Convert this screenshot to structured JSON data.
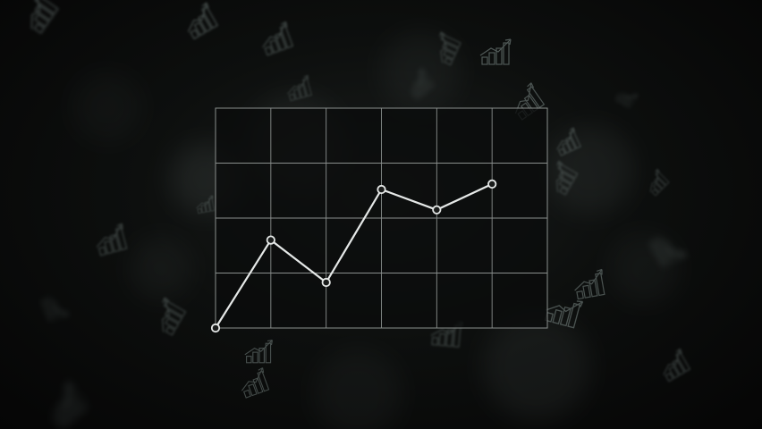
{
  "chart_data": {
    "type": "line",
    "title": "",
    "xlabel": "",
    "ylabel": "",
    "x": [
      0,
      1,
      2,
      3,
      4,
      5
    ],
    "series": [
      {
        "values": [
          0,
          1.6,
          0.83,
          2.52,
          2.15,
          2.62
        ]
      }
    ],
    "xlim": [
      0,
      6
    ],
    "ylim": [
      0,
      4
    ],
    "grid": true,
    "legend": "none"
  },
  "colors": {
    "line": "#e6e9e8",
    "grid": "#8a8f8d",
    "panel": "#0a0b0b",
    "marker_fill": "#1a1c1b",
    "background_icon": "#7c8a87"
  },
  "background_icons": [
    "bar-growth-icon",
    "bar-growth-icon",
    "bar-growth-icon",
    "bar-growth-icon",
    "bar-growth-icon",
    "bar-growth-icon",
    "bar-growth-icon",
    "bar-growth-icon",
    "bar-growth-icon",
    "bar-growth-icon",
    "bar-growth-icon",
    "bar-growth-icon",
    "bar-growth-icon",
    "bar-growth-icon",
    "bar-growth-icon",
    "bar-growth-icon",
    "bar-growth-icon",
    "bar-growth-icon",
    "bar-growth-icon",
    "bar-growth-icon"
  ]
}
